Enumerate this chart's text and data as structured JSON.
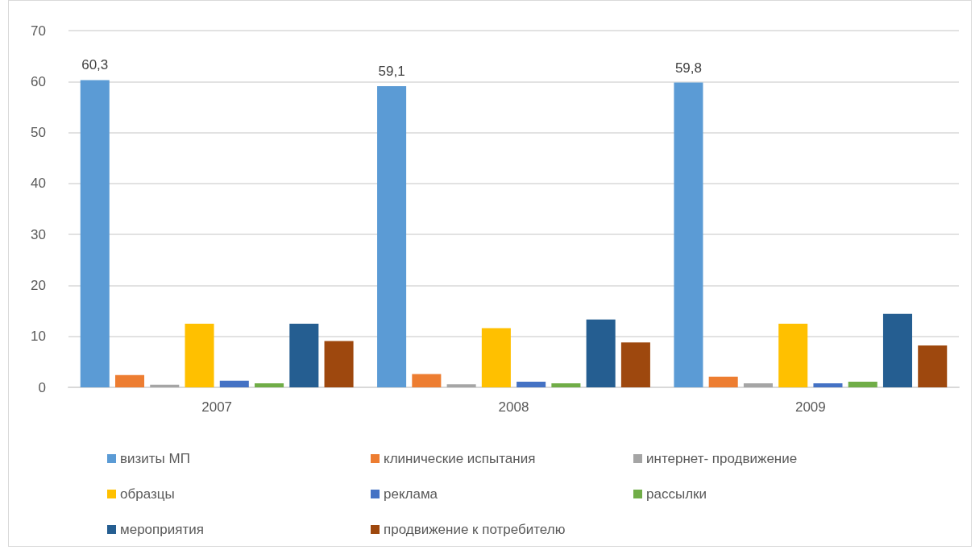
{
  "chart_data": {
    "type": "bar",
    "categories": [
      "2007",
      "2008",
      "2009"
    ],
    "series": [
      {
        "name": "визиты МП",
        "color": "#5b9bd5",
        "values": [
          60.3,
          59.1,
          59.8
        ],
        "value_labels": [
          "60,3",
          "59,1",
          "59,8"
        ]
      },
      {
        "name": "клинические испытания",
        "color": "#ed7d31",
        "values": [
          2.4,
          2.6,
          2.1
        ]
      },
      {
        "name": "интернет- продвижение",
        "color": "#a5a5a5",
        "values": [
          0.5,
          0.6,
          0.8
        ]
      },
      {
        "name": "образцы",
        "color": "#ffc000",
        "values": [
          12.5,
          11.6,
          12.5
        ]
      },
      {
        "name": "реклама",
        "color": "#4472c4",
        "values": [
          1.3,
          1.1,
          0.8
        ]
      },
      {
        "name": "рассылки",
        "color": "#70ad47",
        "values": [
          0.8,
          0.8,
          1.1
        ]
      },
      {
        "name": "мероприятия",
        "color": "#255e91",
        "values": [
          12.5,
          13.3,
          14.4
        ]
      },
      {
        "name": "продвижение к потребителю",
        "color": "#9e480e",
        "values": [
          9.1,
          8.8,
          8.2
        ]
      }
    ],
    "ylim": [
      0,
      70
    ],
    "yticks": [
      0,
      10,
      20,
      30,
      40,
      50,
      60,
      70
    ],
    "grid": "y",
    "legend": "bottom"
  }
}
